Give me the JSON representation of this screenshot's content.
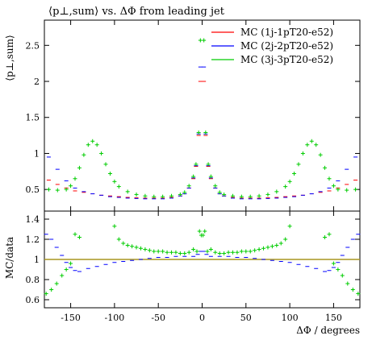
{
  "chart_data": [
    {
      "type": "scatter",
      "panel": "main",
      "title": "⟨p⊥,sum⟩ vs. ΔΦ from leading jet",
      "ylabel": "⟨p⊥,sum⟩",
      "xlabel": "",
      "xlim": [
        -180,
        180
      ],
      "ylim": [
        0.2,
        2.85
      ],
      "yticks": [
        "0.5",
        "1",
        "1.5",
        "2",
        "2.5"
      ],
      "legend_position": "top-right",
      "series": [
        {
          "name": "MC (1j-1pT20-e52)",
          "color": "#ff0000",
          "points": [
            [
              -175,
              0.63
            ],
            [
              -165,
              0.57
            ],
            [
              -155,
              0.52
            ],
            [
              -145,
              0.48
            ],
            [
              -135,
              0.46
            ],
            [
              -125,
              0.44
            ],
            [
              -115,
              0.42
            ],
            [
              -105,
              0.41
            ],
            [
              -95,
              0.4
            ],
            [
              -85,
              0.39
            ],
            [
              -75,
              0.385
            ],
            [
              -65,
              0.38
            ],
            [
              -55,
              0.38
            ],
            [
              -45,
              0.38
            ],
            [
              -35,
              0.39
            ],
            [
              -25,
              0.41
            ],
            [
              -20,
              0.44
            ],
            [
              -15,
              0.52
            ],
            [
              -10,
              0.65
            ],
            [
              -7,
              0.82
            ],
            [
              -4,
              1.25
            ],
            [
              -2,
              2.0
            ],
            [
              2,
              2.0
            ],
            [
              4,
              1.25
            ],
            [
              7,
              0.82
            ],
            [
              10,
              0.65
            ],
            [
              15,
              0.52
            ],
            [
              20,
              0.44
            ],
            [
              25,
              0.41
            ],
            [
              35,
              0.39
            ],
            [
              45,
              0.38
            ],
            [
              55,
              0.38
            ],
            [
              65,
              0.38
            ],
            [
              75,
              0.385
            ],
            [
              85,
              0.39
            ],
            [
              95,
              0.4
            ],
            [
              105,
              0.41
            ],
            [
              115,
              0.42
            ],
            [
              125,
              0.44
            ],
            [
              135,
              0.46
            ],
            [
              145,
              0.48
            ],
            [
              155,
              0.52
            ],
            [
              165,
              0.57
            ],
            [
              175,
              0.63
            ]
          ]
        },
        {
          "name": "MC (2j-2pT20-e52)",
          "color": "#0000ff",
          "points": [
            [
              -175,
              0.95
            ],
            [
              -165,
              0.78
            ],
            [
              -155,
              0.62
            ],
            [
              -145,
              0.52
            ],
            [
              -135,
              0.47
            ],
            [
              -125,
              0.44
            ],
            [
              -115,
              0.42
            ],
            [
              -105,
              0.4
            ],
            [
              -95,
              0.39
            ],
            [
              -85,
              0.38
            ],
            [
              -75,
              0.375
            ],
            [
              -65,
              0.37
            ],
            [
              -55,
              0.37
            ],
            [
              -45,
              0.37
            ],
            [
              -35,
              0.38
            ],
            [
              -25,
              0.41
            ],
            [
              -20,
              0.44
            ],
            [
              -15,
              0.52
            ],
            [
              -10,
              0.66
            ],
            [
              -7,
              0.83
            ],
            [
              -4,
              1.27
            ],
            [
              -2,
              2.2
            ],
            [
              2,
              2.2
            ],
            [
              4,
              1.27
            ],
            [
              7,
              0.83
            ],
            [
              10,
              0.66
            ],
            [
              15,
              0.52
            ],
            [
              20,
              0.44
            ],
            [
              25,
              0.41
            ],
            [
              35,
              0.38
            ],
            [
              45,
              0.37
            ],
            [
              55,
              0.37
            ],
            [
              65,
              0.37
            ],
            [
              75,
              0.375
            ],
            [
              85,
              0.38
            ],
            [
              95,
              0.39
            ],
            [
              105,
              0.4
            ],
            [
              115,
              0.42
            ],
            [
              125,
              0.44
            ],
            [
              135,
              0.47
            ],
            [
              145,
              0.52
            ],
            [
              155,
              0.62
            ],
            [
              165,
              0.78
            ],
            [
              175,
              0.95
            ]
          ]
        },
        {
          "name": "MC (3j-3pT20-e52)",
          "color": "#00cc00",
          "points": [
            [
              -175,
              0.5
            ],
            [
              -165,
              0.49
            ],
            [
              -155,
              0.5
            ],
            [
              -150,
              0.55
            ],
            [
              -145,
              0.65
            ],
            [
              -140,
              0.8
            ],
            [
              -135,
              0.98
            ],
            [
              -130,
              1.12
            ],
            [
              -125,
              1.17
            ],
            [
              -120,
              1.12
            ],
            [
              -115,
              1.0
            ],
            [
              -110,
              0.85
            ],
            [
              -105,
              0.72
            ],
            [
              -100,
              0.61
            ],
            [
              -95,
              0.54
            ],
            [
              -85,
              0.47
            ],
            [
              -75,
              0.43
            ],
            [
              -65,
              0.41
            ],
            [
              -55,
              0.4
            ],
            [
              -45,
              0.4
            ],
            [
              -35,
              0.41
            ],
            [
              -25,
              0.43
            ],
            [
              -20,
              0.46
            ],
            [
              -15,
              0.55
            ],
            [
              -10,
              0.68
            ],
            [
              -7,
              0.85
            ],
            [
              -4,
              1.29
            ],
            [
              -2,
              2.57
            ],
            [
              2,
              2.57
            ],
            [
              4,
              1.29
            ],
            [
              7,
              0.85
            ],
            [
              10,
              0.68
            ],
            [
              15,
              0.55
            ],
            [
              20,
              0.46
            ],
            [
              25,
              0.43
            ],
            [
              35,
              0.41
            ],
            [
              45,
              0.4
            ],
            [
              55,
              0.4
            ],
            [
              65,
              0.41
            ],
            [
              75,
              0.43
            ],
            [
              85,
              0.47
            ],
            [
              95,
              0.54
            ],
            [
              100,
              0.61
            ],
            [
              105,
              0.72
            ],
            [
              110,
              0.85
            ],
            [
              115,
              1.0
            ],
            [
              120,
              1.12
            ],
            [
              125,
              1.17
            ],
            [
              130,
              1.12
            ],
            [
              135,
              0.98
            ],
            [
              140,
              0.8
            ],
            [
              145,
              0.65
            ],
            [
              150,
              0.55
            ],
            [
              155,
              0.5
            ],
            [
              165,
              0.49
            ],
            [
              175,
              0.5
            ]
          ]
        }
      ]
    },
    {
      "type": "scatter",
      "panel": "ratio",
      "ylabel": "MC/data",
      "xlabel": "ΔΦ / degrees",
      "xlim": [
        -180,
        180
      ],
      "ylim": [
        0.52,
        1.48
      ],
      "yticks": [
        "0.6",
        "0.8",
        "1",
        "1.2",
        "1.4"
      ],
      "xticks": [
        "-150",
        "-100",
        "-50",
        "0",
        "50",
        "100",
        "150"
      ],
      "reference_line": 1.0,
      "series": [
        {
          "name": "MC (2j-2pT20-e52)",
          "color": "#0000ff",
          "points": [
            [
              -178,
              1.25
            ],
            [
              -172,
              1.2
            ],
            [
              -166,
              1.12
            ],
            [
              -160,
              1.04
            ],
            [
              -155,
              0.97
            ],
            [
              -150,
              0.92
            ],
            [
              -145,
              0.89
            ],
            [
              -140,
              0.88
            ],
            [
              -130,
              0.91
            ],
            [
              -120,
              0.93
            ],
            [
              -110,
              0.95
            ],
            [
              -100,
              0.97
            ],
            [
              -90,
              0.98
            ],
            [
              -80,
              0.99
            ],
            [
              -70,
              1.0
            ],
            [
              -60,
              1.01
            ],
            [
              -50,
              1.02
            ],
            [
              -40,
              1.02
            ],
            [
              -30,
              1.03
            ],
            [
              -20,
              1.03
            ],
            [
              -10,
              1.03
            ],
            [
              -5,
              1.05
            ],
            [
              -2,
              1.08
            ],
            [
              2,
              1.08
            ],
            [
              5,
              1.05
            ],
            [
              10,
              1.03
            ],
            [
              20,
              1.03
            ],
            [
              30,
              1.03
            ],
            [
              40,
              1.02
            ],
            [
              50,
              1.02
            ],
            [
              60,
              1.01
            ],
            [
              70,
              1.0
            ],
            [
              80,
              0.99
            ],
            [
              90,
              0.98
            ],
            [
              100,
              0.97
            ],
            [
              110,
              0.95
            ],
            [
              120,
              0.93
            ],
            [
              130,
              0.91
            ],
            [
              140,
              0.88
            ],
            [
              145,
              0.89
            ],
            [
              150,
              0.92
            ],
            [
              155,
              0.97
            ],
            [
              160,
              1.04
            ],
            [
              166,
              1.12
            ],
            [
              172,
              1.2
            ],
            [
              178,
              1.25
            ]
          ]
        },
        {
          "name": "MC (3j-3pT20-e52)",
          "color": "#00cc00",
          "points": [
            [
              -178,
              0.66
            ],
            [
              -172,
              0.7
            ],
            [
              -166,
              0.76
            ],
            [
              -160,
              0.84
            ],
            [
              -155,
              0.9
            ],
            [
              -150,
              0.96
            ],
            [
              -145,
              1.25
            ],
            [
              -140,
              1.22
            ],
            [
              -100,
              1.33
            ],
            [
              -95,
              1.2
            ],
            [
              -90,
              1.16
            ],
            [
              -85,
              1.14
            ],
            [
              -80,
              1.13
            ],
            [
              -75,
              1.12
            ],
            [
              -70,
              1.11
            ],
            [
              -65,
              1.1
            ],
            [
              -60,
              1.09
            ],
            [
              -55,
              1.08
            ],
            [
              -50,
              1.08
            ],
            [
              -45,
              1.08
            ],
            [
              -40,
              1.07
            ],
            [
              -35,
              1.07
            ],
            [
              -30,
              1.07
            ],
            [
              -25,
              1.06
            ],
            [
              -20,
              1.06
            ],
            [
              -15,
              1.07
            ],
            [
              -10,
              1.1
            ],
            [
              -6,
              1.08
            ],
            [
              -3,
              1.28
            ],
            [
              -1,
              1.24
            ],
            [
              1,
              1.24
            ],
            [
              3,
              1.28
            ],
            [
              6,
              1.08
            ],
            [
              10,
              1.1
            ],
            [
              15,
              1.07
            ],
            [
              20,
              1.06
            ],
            [
              25,
              1.06
            ],
            [
              30,
              1.07
            ],
            [
              35,
              1.07
            ],
            [
              40,
              1.07
            ],
            [
              45,
              1.08
            ],
            [
              50,
              1.08
            ],
            [
              55,
              1.08
            ],
            [
              60,
              1.09
            ],
            [
              65,
              1.1
            ],
            [
              70,
              1.11
            ],
            [
              75,
              1.12
            ],
            [
              80,
              1.13
            ],
            [
              85,
              1.14
            ],
            [
              90,
              1.16
            ],
            [
              95,
              1.2
            ],
            [
              100,
              1.33
            ],
            [
              140,
              1.22
            ],
            [
              145,
              1.25
            ],
            [
              150,
              0.96
            ],
            [
              155,
              0.9
            ],
            [
              160,
              0.84
            ],
            [
              166,
              0.76
            ],
            [
              172,
              0.7
            ],
            [
              178,
              0.66
            ]
          ]
        }
      ]
    }
  ],
  "legend": [
    {
      "label": "MC (1j-1pT20-e52)",
      "color": "#ff0000"
    },
    {
      "label": "MC (2j-2pT20-e52)",
      "color": "#0000ff"
    },
    {
      "label": "MC (3j-3pT20-e52)",
      "color": "#00cc00"
    }
  ],
  "reference_line_color": "#a89520"
}
